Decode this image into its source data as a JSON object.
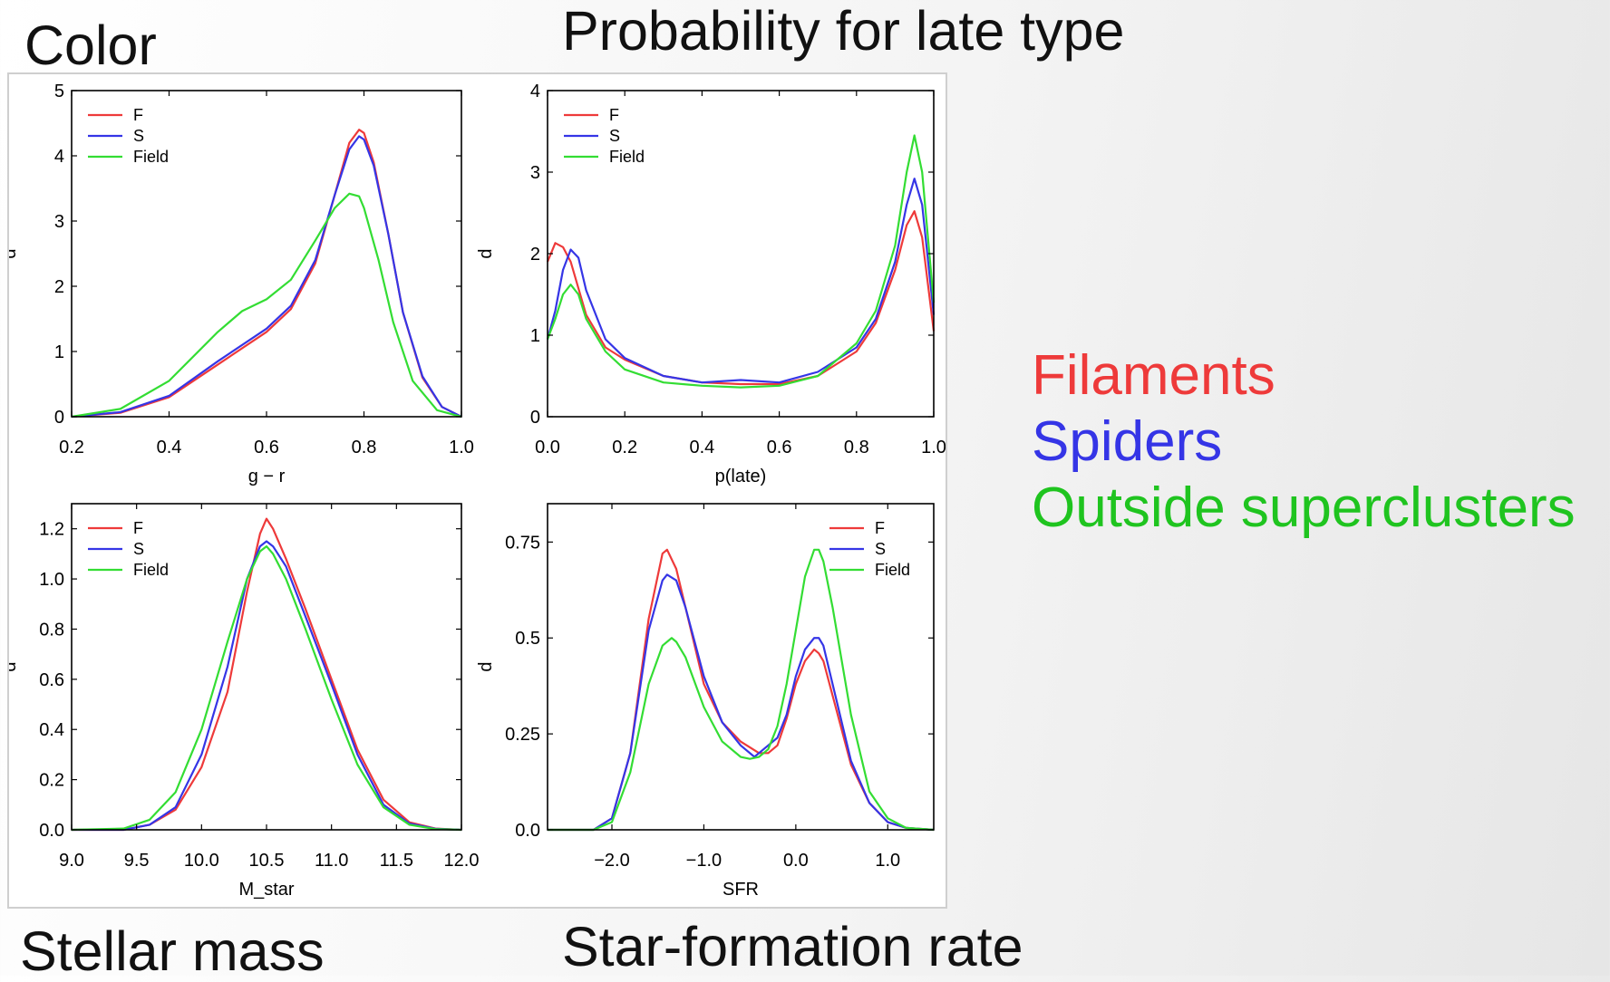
{
  "titles": {
    "color": "Color",
    "plate": "Probability for late type",
    "mass": "Stellar mass",
    "sfr": "Star-formation rate"
  },
  "side_legend": {
    "items": [
      {
        "label": "Filaments",
        "color": "#ee3a3a"
      },
      {
        "label": "Spiders",
        "color": "#3535e6"
      },
      {
        "label": "Outside superclusters",
        "color": "#1fc41f"
      }
    ]
  },
  "chart_data": [
    {
      "type": "line",
      "xlabel": "g − r",
      "ylabel": "d",
      "xlim": [
        0.2,
        1.0
      ],
      "ylim": [
        0,
        5
      ],
      "xticks": [
        "0.2",
        "0.4",
        "0.6",
        "0.8",
        "1.0"
      ],
      "yticks": [
        "0",
        "1",
        "2",
        "3",
        "4",
        "5"
      ],
      "legend": "top-left",
      "grid": false,
      "series": [
        {
          "name": "F",
          "color": "#ee3a3a",
          "x": [
            0.2,
            0.3,
            0.4,
            0.5,
            0.6,
            0.65,
            0.7,
            0.74,
            0.77,
            0.79,
            0.8,
            0.82,
            0.85,
            0.88,
            0.92,
            0.96,
            1.0
          ],
          "y": [
            0,
            0.06,
            0.3,
            0.8,
            1.3,
            1.65,
            2.35,
            3.4,
            4.2,
            4.4,
            4.35,
            3.9,
            2.8,
            1.6,
            0.6,
            0.15,
            0
          ]
        },
        {
          "name": "S",
          "color": "#3535e6",
          "x": [
            0.2,
            0.3,
            0.4,
            0.5,
            0.6,
            0.65,
            0.7,
            0.74,
            0.77,
            0.79,
            0.8,
            0.82,
            0.85,
            0.88,
            0.92,
            0.96,
            1.0
          ],
          "y": [
            0,
            0.07,
            0.32,
            0.85,
            1.35,
            1.7,
            2.4,
            3.4,
            4.1,
            4.3,
            4.25,
            3.85,
            2.8,
            1.6,
            0.62,
            0.15,
            0
          ]
        },
        {
          "name": "Field",
          "color": "#33dd33",
          "x": [
            0.2,
            0.3,
            0.4,
            0.5,
            0.55,
            0.6,
            0.65,
            0.7,
            0.74,
            0.77,
            0.79,
            0.8,
            0.83,
            0.86,
            0.9,
            0.95,
            1.0
          ],
          "y": [
            0,
            0.12,
            0.55,
            1.3,
            1.62,
            1.8,
            2.1,
            2.7,
            3.2,
            3.42,
            3.38,
            3.2,
            2.4,
            1.45,
            0.55,
            0.1,
            0
          ]
        }
      ]
    },
    {
      "type": "line",
      "xlabel": "p(late)",
      "ylabel": "d",
      "xlim": [
        0.0,
        1.0
      ],
      "ylim": [
        0,
        4
      ],
      "xticks": [
        "0.0",
        "0.2",
        "0.4",
        "0.6",
        "0.8",
        "1.0"
      ],
      "yticks": [
        "0",
        "1",
        "2",
        "3",
        "4"
      ],
      "legend": "top-left",
      "grid": false,
      "series": [
        {
          "name": "F",
          "color": "#ee3a3a",
          "x": [
            0.0,
            0.02,
            0.04,
            0.06,
            0.1,
            0.15,
            0.2,
            0.3,
            0.4,
            0.5,
            0.6,
            0.7,
            0.8,
            0.85,
            0.9,
            0.93,
            0.95,
            0.97,
            1.0
          ],
          "y": [
            1.9,
            2.13,
            2.08,
            1.9,
            1.25,
            0.85,
            0.7,
            0.5,
            0.42,
            0.4,
            0.4,
            0.5,
            0.8,
            1.15,
            1.8,
            2.35,
            2.52,
            2.2,
            1.05
          ]
        },
        {
          "name": "S",
          "color": "#3535e6",
          "x": [
            0.0,
            0.02,
            0.04,
            0.06,
            0.08,
            0.1,
            0.15,
            0.2,
            0.3,
            0.4,
            0.5,
            0.6,
            0.7,
            0.8,
            0.85,
            0.9,
            0.93,
            0.95,
            0.97,
            1.0
          ],
          "y": [
            0.95,
            1.3,
            1.8,
            2.05,
            1.95,
            1.55,
            0.95,
            0.72,
            0.5,
            0.42,
            0.45,
            0.42,
            0.55,
            0.85,
            1.2,
            1.9,
            2.6,
            2.92,
            2.6,
            1.25
          ]
        },
        {
          "name": "Field",
          "color": "#33dd33",
          "x": [
            0.0,
            0.02,
            0.04,
            0.06,
            0.08,
            0.1,
            0.15,
            0.2,
            0.3,
            0.4,
            0.5,
            0.6,
            0.7,
            0.8,
            0.85,
            0.9,
            0.93,
            0.95,
            0.97,
            1.0
          ],
          "y": [
            0.95,
            1.2,
            1.5,
            1.62,
            1.5,
            1.2,
            0.8,
            0.58,
            0.42,
            0.38,
            0.36,
            0.38,
            0.5,
            0.9,
            1.3,
            2.1,
            3.0,
            3.45,
            3.0,
            1.4
          ]
        }
      ]
    },
    {
      "type": "line",
      "xlabel": "M_star",
      "ylabel": "d",
      "xlim": [
        9.0,
        12.0
      ],
      "ylim": [
        0,
        1.3
      ],
      "xticks": [
        "9.0",
        "9.5",
        "10.0",
        "10.5",
        "11.0",
        "11.5",
        "12.0"
      ],
      "yticks": [
        "0.0",
        "0.2",
        "0.4",
        "0.6",
        "0.8",
        "1.0",
        "1.2"
      ],
      "legend": "top-left",
      "grid": false,
      "series": [
        {
          "name": "F",
          "color": "#ee3a3a",
          "x": [
            9.0,
            9.4,
            9.6,
            9.8,
            10.0,
            10.2,
            10.35,
            10.45,
            10.5,
            10.55,
            10.65,
            10.8,
            11.0,
            11.2,
            11.4,
            11.6,
            11.8,
            12.0
          ],
          "y": [
            0,
            0,
            0.02,
            0.08,
            0.25,
            0.55,
            0.95,
            1.18,
            1.24,
            1.2,
            1.08,
            0.88,
            0.6,
            0.32,
            0.12,
            0.03,
            0.005,
            0
          ]
        },
        {
          "name": "S",
          "color": "#3535e6",
          "x": [
            9.0,
            9.4,
            9.6,
            9.8,
            10.0,
            10.2,
            10.35,
            10.45,
            10.5,
            10.55,
            10.65,
            10.8,
            11.0,
            11.2,
            11.4,
            11.6,
            11.8,
            12.0
          ],
          "y": [
            0,
            0,
            0.02,
            0.09,
            0.3,
            0.65,
            1.0,
            1.13,
            1.15,
            1.13,
            1.05,
            0.85,
            0.58,
            0.3,
            0.1,
            0.025,
            0.004,
            0
          ]
        },
        {
          "name": "Field",
          "color": "#33dd33",
          "x": [
            9.0,
            9.4,
            9.6,
            9.8,
            10.0,
            10.2,
            10.35,
            10.45,
            10.5,
            10.55,
            10.65,
            10.8,
            11.0,
            11.2,
            11.4,
            11.6,
            11.8,
            12.0
          ],
          "y": [
            0,
            0.005,
            0.04,
            0.15,
            0.4,
            0.75,
            1.0,
            1.11,
            1.13,
            1.1,
            1.0,
            0.8,
            0.52,
            0.26,
            0.09,
            0.02,
            0.003,
            0
          ]
        }
      ]
    },
    {
      "type": "line",
      "xlabel": "SFR",
      "ylabel": "d",
      "xlim": [
        -2.7,
        1.5
      ],
      "ylim": [
        0,
        0.85
      ],
      "xticks": [
        "−2.0",
        "−1.0",
        "0.0",
        "1.0"
      ],
      "xtick_values": [
        -2.0,
        -1.0,
        0.0,
        1.0
      ],
      "yticks": [
        "0.0",
        "0.25",
        "0.5",
        "0.75"
      ],
      "ytick_values": [
        0,
        0.25,
        0.5,
        0.75
      ],
      "legend": "top-right",
      "grid": false,
      "series": [
        {
          "name": "F",
          "color": "#ee3a3a",
          "x": [
            -2.7,
            -2.2,
            -2.0,
            -1.8,
            -1.6,
            -1.45,
            -1.4,
            -1.3,
            -1.2,
            -1.0,
            -0.8,
            -0.6,
            -0.4,
            -0.3,
            -0.2,
            -0.1,
            0.0,
            0.1,
            0.2,
            0.25,
            0.3,
            0.4,
            0.6,
            0.8,
            1.0,
            1.2,
            1.5
          ],
          "y": [
            0,
            0,
            0.03,
            0.2,
            0.55,
            0.72,
            0.73,
            0.68,
            0.58,
            0.38,
            0.28,
            0.23,
            0.2,
            0.2,
            0.22,
            0.29,
            0.38,
            0.44,
            0.47,
            0.46,
            0.44,
            0.35,
            0.17,
            0.07,
            0.02,
            0.005,
            0
          ]
        },
        {
          "name": "S",
          "color": "#3535e6",
          "x": [
            -2.7,
            -2.2,
            -2.0,
            -1.8,
            -1.6,
            -1.45,
            -1.4,
            -1.3,
            -1.2,
            -1.0,
            -0.8,
            -0.6,
            -0.45,
            -0.3,
            -0.2,
            -0.1,
            0.0,
            0.1,
            0.2,
            0.25,
            0.3,
            0.4,
            0.6,
            0.8,
            1.0,
            1.2,
            1.5
          ],
          "y": [
            0,
            0,
            0.03,
            0.2,
            0.52,
            0.65,
            0.665,
            0.65,
            0.58,
            0.4,
            0.28,
            0.22,
            0.19,
            0.22,
            0.24,
            0.3,
            0.4,
            0.47,
            0.5,
            0.5,
            0.48,
            0.38,
            0.18,
            0.07,
            0.02,
            0.005,
            0
          ]
        },
        {
          "name": "Field",
          "color": "#33dd33",
          "x": [
            -2.7,
            -2.2,
            -2.0,
            -1.8,
            -1.6,
            -1.45,
            -1.35,
            -1.3,
            -1.2,
            -1.0,
            -0.8,
            -0.6,
            -0.5,
            -0.4,
            -0.3,
            -0.2,
            -0.1,
            0.0,
            0.1,
            0.2,
            0.25,
            0.3,
            0.4,
            0.6,
            0.8,
            1.0,
            1.2,
            1.5
          ],
          "y": [
            0,
            0,
            0.02,
            0.15,
            0.38,
            0.48,
            0.5,
            0.49,
            0.45,
            0.32,
            0.23,
            0.19,
            0.185,
            0.19,
            0.21,
            0.27,
            0.38,
            0.52,
            0.66,
            0.73,
            0.73,
            0.7,
            0.58,
            0.3,
            0.1,
            0.03,
            0.005,
            0
          ]
        }
      ]
    }
  ]
}
